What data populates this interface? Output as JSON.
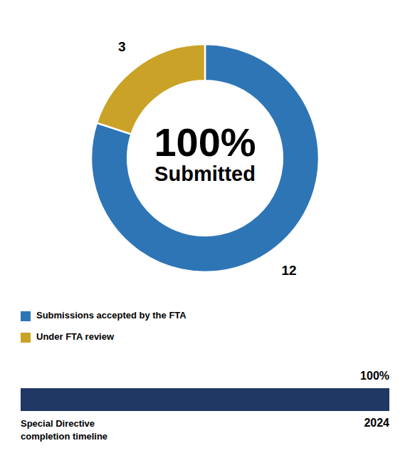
{
  "chart_data": [
    {
      "type": "pie",
      "categories": [
        "Submissions accepted by the FTA",
        "Under FTA review"
      ],
      "values": [
        12,
        3
      ],
      "colors": [
        "#2E75B6",
        "#C9A227"
      ],
      "data_labels": true,
      "annotations": [
        "100%",
        "Submitted"
      ],
      "legend": "bottom"
    },
    {
      "type": "bar",
      "orientation": "horizontal",
      "categories": [
        "Special Directive\ncompletion timeline"
      ],
      "values": [
        100
      ],
      "value_labels": [
        "100%"
      ],
      "color": "#1F3864",
      "xlim": [
        0,
        100
      ],
      "tick_labels": false,
      "annotations": [
        "2024"
      ]
    }
  ]
}
